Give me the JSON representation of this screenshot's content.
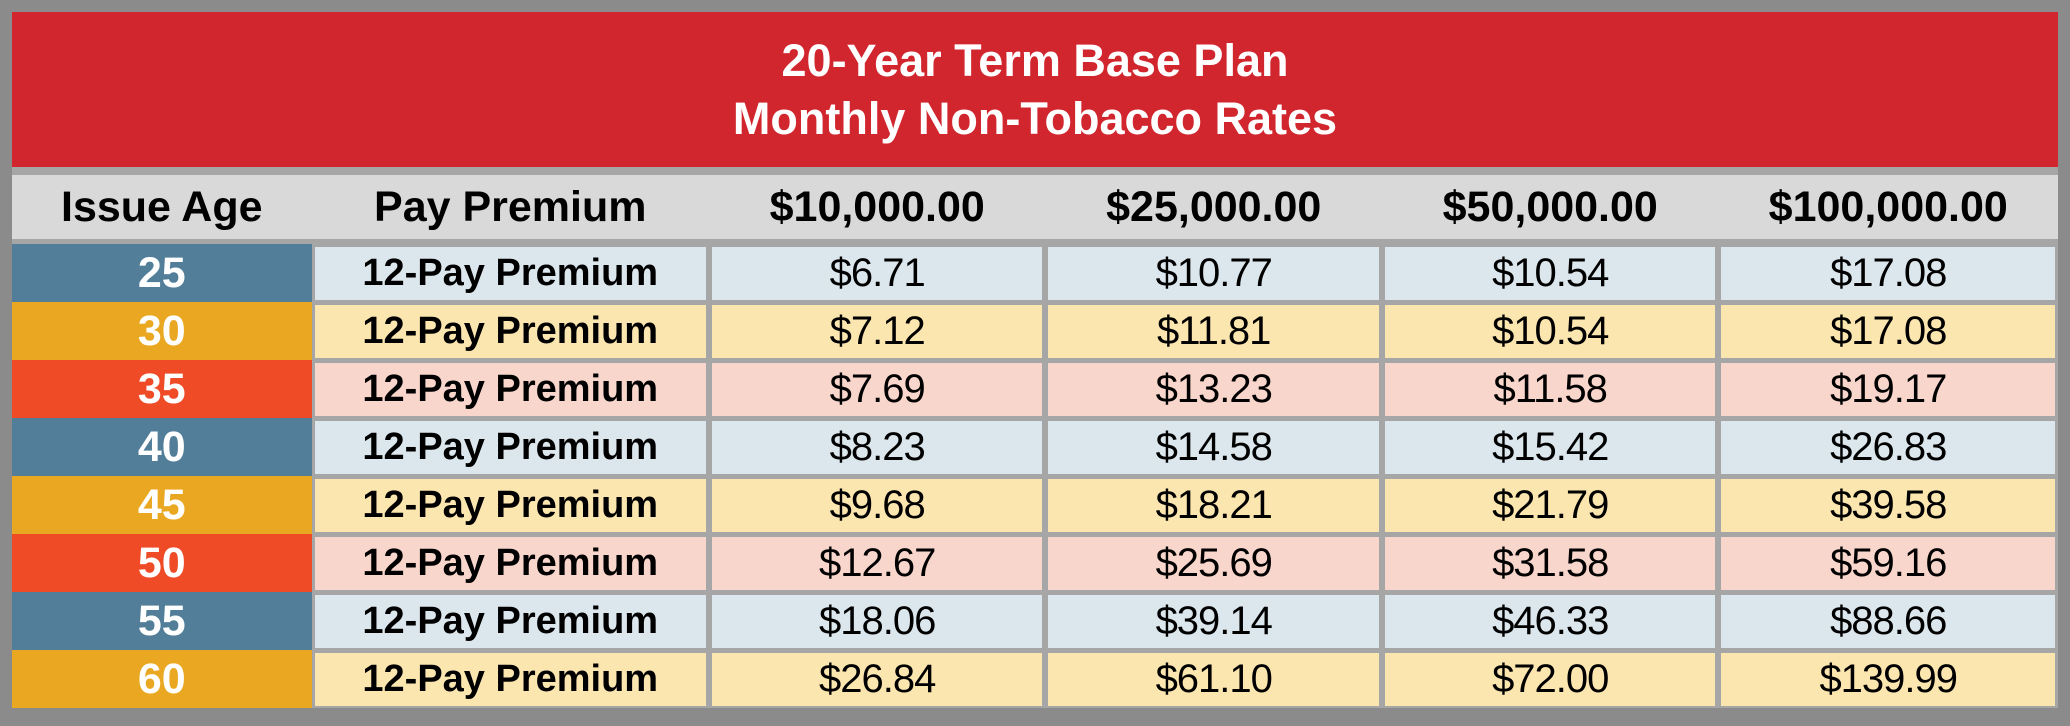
{
  "banner": {
    "line1": "20-Year Term Base Plan",
    "line2": "Monthly Non-Tobacco Rates"
  },
  "table": {
    "headers": [
      "Issue Age",
      "Pay Premium",
      "$10,000.00",
      "$25,000.00",
      "$50,000.00",
      "$100,000.00"
    ],
    "rows": [
      {
        "age": "25",
        "label": "12-Pay Premium",
        "values": [
          "$6.71",
          "$10.77",
          "$10.54",
          "$17.08"
        ],
        "theme": "blue"
      },
      {
        "age": "30",
        "label": "12-Pay Premium",
        "values": [
          "$7.12",
          "$11.81",
          "$10.54",
          "$17.08"
        ],
        "theme": "gold"
      },
      {
        "age": "35",
        "label": "12-Pay Premium",
        "values": [
          "$7.69",
          "$13.23",
          "$11.58",
          "$19.17"
        ],
        "theme": "orange"
      },
      {
        "age": "40",
        "label": "12-Pay Premium",
        "values": [
          "$8.23",
          "$14.58",
          "$15.42",
          "$26.83"
        ],
        "theme": "blue"
      },
      {
        "age": "45",
        "label": "12-Pay Premium",
        "values": [
          "$9.68",
          "$18.21",
          "$21.79",
          "$39.58"
        ],
        "theme": "gold"
      },
      {
        "age": "50",
        "label": "12-Pay Premium",
        "values": [
          "$12.67",
          "$25.69",
          "$31.58",
          "$59.16"
        ],
        "theme": "orange"
      },
      {
        "age": "55",
        "label": "12-Pay Premium",
        "values": [
          "$18.06",
          "$39.14",
          "$46.33",
          "$88.66"
        ],
        "theme": "blue"
      },
      {
        "age": "60",
        "label": "12-Pay Premium",
        "values": [
          "$26.84",
          "$61.10",
          "$72.00",
          "$139.99"
        ],
        "theme": "gold"
      }
    ]
  },
  "colors": {
    "banner_red": "#D2262E",
    "frame_gray": "#8B8B8B",
    "gridline_gray": "#A6A6A6",
    "header_gray": "#D9D9D9",
    "age_blue": "#527E99",
    "age_gold": "#EAA822",
    "age_orange": "#EE4B26",
    "row_blue": "#DCE7ED",
    "row_gold": "#FCE6B0",
    "row_pink": "#F9D6CC"
  }
}
